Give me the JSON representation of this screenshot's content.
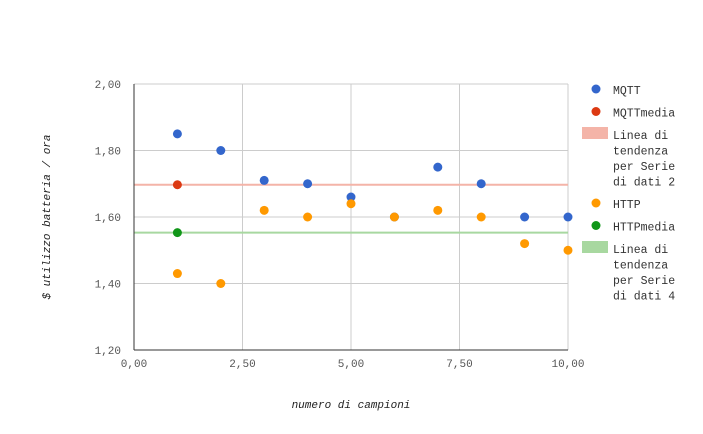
{
  "chart_data": {
    "type": "scatter",
    "xlabel": "numero di campioni",
    "ylabel": "$ utilizzo batteria / ora",
    "xlim": [
      0,
      10
    ],
    "ylim": [
      1.2,
      2.0
    ],
    "x_ticks": [
      "0,00",
      "2,50",
      "5,00",
      "7,50",
      "10,00"
    ],
    "y_ticks": [
      "1,20",
      "1,40",
      "1,60",
      "1,80",
      "2,00"
    ],
    "grid": true,
    "legend_position": "right",
    "series": [
      {
        "name": "MQTT",
        "kind": "points",
        "color": "#3366cc",
        "points": [
          [
            1,
            1.85
          ],
          [
            2,
            1.8
          ],
          [
            3,
            1.71
          ],
          [
            4,
            1.7
          ],
          [
            5,
            1.66
          ],
          [
            6,
            1.6
          ],
          [
            7,
            1.75
          ],
          [
            8,
            1.7
          ],
          [
            9,
            1.6
          ],
          [
            10,
            1.6
          ]
        ]
      },
      {
        "name": "MQTTmedia",
        "kind": "points",
        "color": "#dc3912",
        "points": [
          [
            1,
            1.697
          ]
        ]
      },
      {
        "name": "Linea di tendenza per Serie di dati 2",
        "kind": "hline",
        "color": "#f4b4a8",
        "y": 1.697
      },
      {
        "name": "HTTP",
        "kind": "points",
        "color": "#ff9900",
        "points": [
          [
            1,
            1.43
          ],
          [
            2,
            1.4
          ],
          [
            3,
            1.62
          ],
          [
            4,
            1.6
          ],
          [
            5,
            1.64
          ],
          [
            6,
            1.6
          ],
          [
            7,
            1.62
          ],
          [
            8,
            1.6
          ],
          [
            9,
            1.52
          ],
          [
            10,
            1.5
          ]
        ]
      },
      {
        "name": "HTTPmedia",
        "kind": "points",
        "color": "#109618",
        "points": [
          [
            1,
            1.553
          ]
        ]
      },
      {
        "name": "Linea di tendenza per Serie di dati 4",
        "kind": "hline",
        "color": "#a8d8a0",
        "y": 1.553
      }
    ],
    "legend": [
      {
        "symbol": "dot",
        "color": "#3366cc",
        "lines": [
          "MQTT"
        ]
      },
      {
        "symbol": "dot",
        "color": "#dc3912",
        "lines": [
          "MQTTmedia"
        ]
      },
      {
        "symbol": "rect",
        "color": "#f4b4a8",
        "lines": [
          "Linea di",
          "tendenza",
          "per Serie",
          "di dati 2"
        ]
      },
      {
        "symbol": "dot",
        "color": "#ff9900",
        "lines": [
          "HTTP"
        ]
      },
      {
        "symbol": "dot",
        "color": "#109618",
        "lines": [
          "HTTPmedia"
        ]
      },
      {
        "symbol": "rect",
        "color": "#a8d8a0",
        "lines": [
          "Linea di",
          "tendenza",
          "per Serie",
          "di dati 4"
        ]
      }
    ]
  }
}
